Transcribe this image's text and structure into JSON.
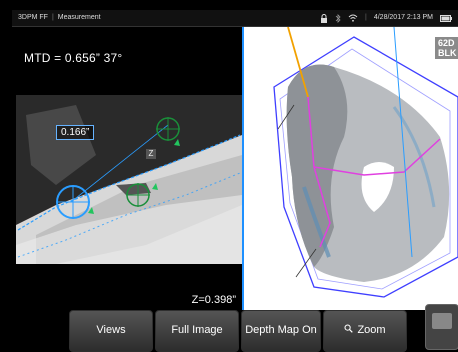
{
  "status": {
    "mode": "3DPM FF",
    "view_title": "Measurement",
    "datetime": "4/28/2017 2:13 PM"
  },
  "left_panel": {
    "mtd": "MTD = 0.656” 37°",
    "measure_value": "0.166”",
    "z_value": "Z=0.398”",
    "z_marker": "Z"
  },
  "right_panel": {
    "badge": "62D\nBLK"
  },
  "toolbar": [
    {
      "label": "Views"
    },
    {
      "label": "Full Image"
    },
    {
      "label": "Depth Map On"
    },
    {
      "label": "Zoom",
      "icon": "magnifier-icon"
    }
  ],
  "colors": {
    "accent": "#1e90ff",
    "measure": "#22c55e",
    "plane": "#3f3fff",
    "profile": "#e040e0"
  }
}
